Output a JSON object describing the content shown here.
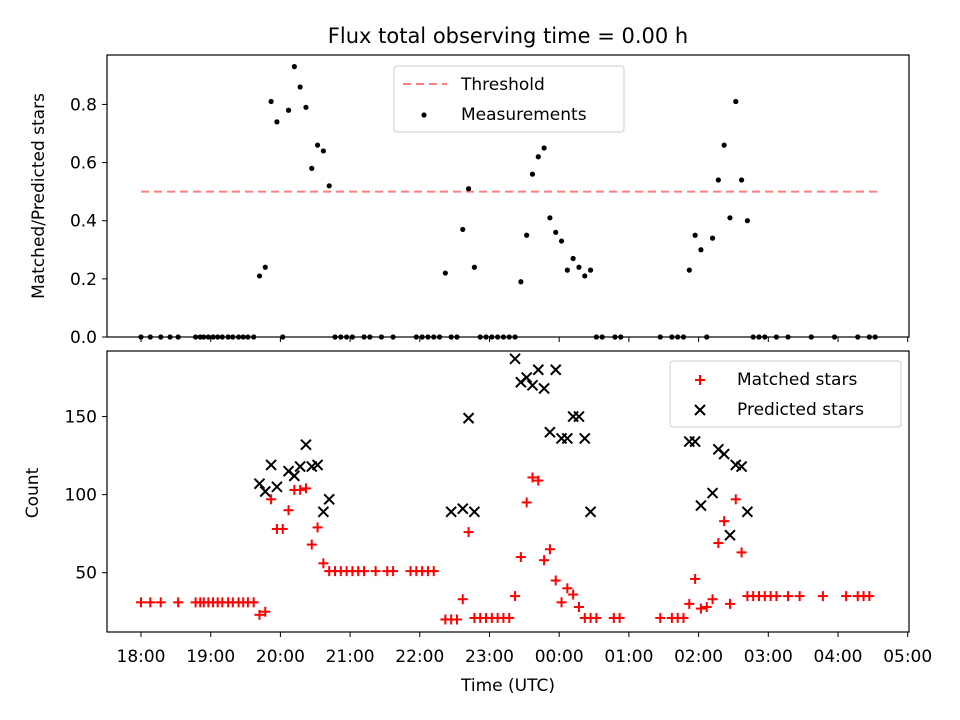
{
  "title": "Flux total observing time = 0.00 h",
  "chart_data": [
    {
      "type": "scatter",
      "title": "Flux total observing time = 0.00 h",
      "xlabel": "",
      "ylabel": "Matched/Predicted stars",
      "ylim": [
        0,
        0.97
      ],
      "yticks": [
        "0.0",
        "0.2",
        "0.4",
        "0.6",
        "0.8"
      ],
      "ytick_values": [
        0,
        0.2,
        0.4,
        0.6,
        0.8
      ],
      "legend_position": "upper center",
      "threshold": {
        "name": "Threshold",
        "value": 0.5,
        "x_range": [
          "18:00",
          "04:36"
        ],
        "color": "#ff7f7f"
      },
      "series": [
        {
          "name": "Measurements",
          "color": "#000000",
          "points": [
            [
              "18:00",
              0
            ],
            [
              "18:08",
              0
            ],
            [
              "18:17",
              0
            ],
            [
              "18:25",
              0
            ],
            [
              "18:32",
              0
            ],
            [
              "18:47",
              0
            ],
            [
              "18:51",
              0
            ],
            [
              "18:54",
              0
            ],
            [
              "18:58",
              0
            ],
            [
              "19:02",
              0
            ],
            [
              "19:06",
              0
            ],
            [
              "19:10",
              0
            ],
            [
              "19:15",
              0
            ],
            [
              "19:19",
              0
            ],
            [
              "19:24",
              0
            ],
            [
              "19:28",
              0
            ],
            [
              "19:32",
              0
            ],
            [
              "19:37",
              0
            ],
            [
              "19:42",
              0.21
            ],
            [
              "19:47",
              0.24
            ],
            [
              "19:52",
              0.81
            ],
            [
              "19:57",
              0.74
            ],
            [
              "20:02",
              0
            ],
            [
              "20:07",
              0.78
            ],
            [
              "20:12",
              0.93
            ],
            [
              "20:17",
              0.86
            ],
            [
              "20:22",
              0.79
            ],
            [
              "20:27",
              0.58
            ],
            [
              "20:32",
              0.66
            ],
            [
              "20:37",
              0.64
            ],
            [
              "20:42",
              0.52
            ],
            [
              "20:47",
              0
            ],
            [
              "20:52",
              0
            ],
            [
              "20:57",
              0
            ],
            [
              "21:02",
              0
            ],
            [
              "21:12",
              0
            ],
            [
              "21:17",
              0
            ],
            [
              "21:27",
              0
            ],
            [
              "21:37",
              0
            ],
            [
              "21:57",
              0
            ],
            [
              "22:02",
              0
            ],
            [
              "22:07",
              0
            ],
            [
              "22:12",
              0
            ],
            [
              "22:17",
              0
            ],
            [
              "22:22",
              0.22
            ],
            [
              "22:27",
              0
            ],
            [
              "22:32",
              0
            ],
            [
              "22:37",
              0.37
            ],
            [
              "22:42",
              0.51
            ],
            [
              "22:47",
              0.24
            ],
            [
              "22:52",
              0
            ],
            [
              "22:57",
              0
            ],
            [
              "23:02",
              0
            ],
            [
              "23:07",
              0
            ],
            [
              "23:12",
              0
            ],
            [
              "23:17",
              0
            ],
            [
              "23:22",
              0
            ],
            [
              "23:27",
              0.19
            ],
            [
              "23:32",
              0.35
            ],
            [
              "23:37",
              0.56
            ],
            [
              "23:42",
              0.62
            ],
            [
              "23:47",
              0.65
            ],
            [
              "23:52",
              0.41
            ],
            [
              "23:57",
              0.36
            ],
            [
              "00:02",
              0.33
            ],
            [
              "00:07",
              0.23
            ],
            [
              "00:12",
              0.27
            ],
            [
              "00:17",
              0.24
            ],
            [
              "00:22",
              0.21
            ],
            [
              "00:27",
              0.23
            ],
            [
              "00:32",
              0
            ],
            [
              "00:37",
              0
            ],
            [
              "00:48",
              0
            ],
            [
              "00:53",
              0
            ],
            [
              "01:27",
              0
            ],
            [
              "01:37",
              0
            ],
            [
              "01:42",
              0
            ],
            [
              "01:47",
              0
            ],
            [
              "01:52",
              0.23
            ],
            [
              "01:57",
              0.35
            ],
            [
              "02:02",
              0.3
            ],
            [
              "02:07",
              0
            ],
            [
              "02:12",
              0.34
            ],
            [
              "02:17",
              0.54
            ],
            [
              "02:22",
              0.66
            ],
            [
              "02:27",
              0.41
            ],
            [
              "02:32",
              0.81
            ],
            [
              "02:37",
              0.54
            ],
            [
              "02:42",
              0.4
            ],
            [
              "02:47",
              0
            ],
            [
              "02:52",
              0
            ],
            [
              "02:57",
              0
            ],
            [
              "03:07",
              0
            ],
            [
              "03:17",
              0
            ],
            [
              "03:37",
              0
            ],
            [
              "03:57",
              0
            ],
            [
              "04:17",
              0
            ],
            [
              "04:27",
              0
            ],
            [
              "04:32",
              0
            ]
          ]
        }
      ]
    },
    {
      "type": "scatter",
      "title": "",
      "xlabel": "Time (UTC)",
      "ylabel": "Count",
      "ylim": [
        12,
        192
      ],
      "yticks": [
        "50",
        "100",
        "150"
      ],
      "ytick_values": [
        50,
        100,
        150
      ],
      "xticks": [
        "18:00",
        "19:00",
        "20:00",
        "21:00",
        "22:00",
        "23:00",
        "00:00",
        "01:00",
        "02:00",
        "03:00",
        "04:00",
        "05:00"
      ],
      "legend_position": "upper right",
      "series": [
        {
          "name": "Matched stars",
          "marker": "plus",
          "color": "#ff0000",
          "points": [
            [
              "18:00",
              31
            ],
            [
              "18:08",
              31
            ],
            [
              "18:17",
              31
            ],
            [
              "18:32",
              31
            ],
            [
              "18:47",
              31
            ],
            [
              "18:51",
              31
            ],
            [
              "18:54",
              31
            ],
            [
              "18:58",
              31
            ],
            [
              "19:02",
              31
            ],
            [
              "19:06",
              31
            ],
            [
              "19:10",
              31
            ],
            [
              "19:15",
              31
            ],
            [
              "19:19",
              31
            ],
            [
              "19:24",
              31
            ],
            [
              "19:28",
              31
            ],
            [
              "19:32",
              31
            ],
            [
              "19:37",
              31
            ],
            [
              "19:42",
              23
            ],
            [
              "19:47",
              25
            ],
            [
              "19:52",
              97
            ],
            [
              "19:57",
              78
            ],
            [
              "20:02",
              78
            ],
            [
              "20:07",
              90
            ],
            [
              "20:12",
              103
            ],
            [
              "20:17",
              103
            ],
            [
              "20:22",
              104
            ],
            [
              "20:27",
              68
            ],
            [
              "20:32",
              79
            ],
            [
              "20:37",
              56
            ],
            [
              "20:42",
              51
            ],
            [
              "20:47",
              51
            ],
            [
              "20:52",
              51
            ],
            [
              "20:57",
              51
            ],
            [
              "21:02",
              51
            ],
            [
              "21:07",
              51
            ],
            [
              "21:12",
              51
            ],
            [
              "21:22",
              51
            ],
            [
              "21:32",
              51
            ],
            [
              "21:37",
              51
            ],
            [
              "21:52",
              51
            ],
            [
              "21:57",
              51
            ],
            [
              "22:02",
              51
            ],
            [
              "22:07",
              51
            ],
            [
              "22:12",
              51
            ],
            [
              "22:22",
              20
            ],
            [
              "22:27",
              20
            ],
            [
              "22:32",
              20
            ],
            [
              "22:37",
              33
            ],
            [
              "22:42",
              76
            ],
            [
              "22:47",
              21
            ],
            [
              "22:52",
              21
            ],
            [
              "22:57",
              21
            ],
            [
              "23:02",
              21
            ],
            [
              "23:07",
              21
            ],
            [
              "23:12",
              21
            ],
            [
              "23:17",
              21
            ],
            [
              "23:22",
              35
            ],
            [
              "23:27",
              60
            ],
            [
              "23:32",
              95
            ],
            [
              "23:37",
              111
            ],
            [
              "23:42",
              109
            ],
            [
              "23:47",
              58
            ],
            [
              "23:52",
              65
            ],
            [
              "23:57",
              45
            ],
            [
              "00:02",
              31
            ],
            [
              "00:07",
              40
            ],
            [
              "00:12",
              36
            ],
            [
              "00:17",
              28
            ],
            [
              "00:22",
              21
            ],
            [
              "00:27",
              21
            ],
            [
              "00:32",
              21
            ],
            [
              "00:47",
              21
            ],
            [
              "00:52",
              21
            ],
            [
              "01:27",
              21
            ],
            [
              "01:37",
              21
            ],
            [
              "01:42",
              21
            ],
            [
              "01:47",
              21
            ],
            [
              "01:52",
              30
            ],
            [
              "01:57",
              46
            ],
            [
              "02:02",
              27
            ],
            [
              "02:07",
              28
            ],
            [
              "02:12",
              33
            ],
            [
              "02:17",
              69
            ],
            [
              "02:22",
              83
            ],
            [
              "02:27",
              30
            ],
            [
              "02:32",
              97
            ],
            [
              "02:37",
              63
            ],
            [
              "02:42",
              35
            ],
            [
              "02:47",
              35
            ],
            [
              "02:52",
              35
            ],
            [
              "02:57",
              35
            ],
            [
              "03:02",
              35
            ],
            [
              "03:07",
              35
            ],
            [
              "03:17",
              35
            ],
            [
              "03:27",
              35
            ],
            [
              "03:47",
              35
            ],
            [
              "04:07",
              35
            ],
            [
              "04:17",
              35
            ],
            [
              "04:22",
              35
            ],
            [
              "04:27",
              35
            ]
          ]
        },
        {
          "name": "Predicted stars",
          "marker": "x",
          "color": "#000000",
          "points": [
            [
              "19:42",
              107
            ],
            [
              "19:47",
              102
            ],
            [
              "19:52",
              119
            ],
            [
              "19:57",
              105
            ],
            [
              "20:07",
              115
            ],
            [
              "20:12",
              112
            ],
            [
              "20:17",
              118
            ],
            [
              "20:22",
              132
            ],
            [
              "20:27",
              118
            ],
            [
              "20:32",
              119
            ],
            [
              "20:37",
              89
            ],
            [
              "20:42",
              97
            ],
            [
              "22:27",
              89
            ],
            [
              "22:37",
              91
            ],
            [
              "22:42",
              149
            ],
            [
              "22:47",
              89
            ],
            [
              "23:22",
              187
            ],
            [
              "23:27",
              172
            ],
            [
              "23:32",
              175
            ],
            [
              "23:37",
              170
            ],
            [
              "23:42",
              180
            ],
            [
              "23:47",
              168
            ],
            [
              "23:52",
              140
            ],
            [
              "23:57",
              180
            ],
            [
              "00:02",
              136
            ],
            [
              "00:07",
              136
            ],
            [
              "00:12",
              150
            ],
            [
              "00:17",
              150
            ],
            [
              "00:22",
              136
            ],
            [
              "00:27",
              89
            ],
            [
              "01:52",
              134
            ],
            [
              "01:57",
              134
            ],
            [
              "02:02",
              93
            ],
            [
              "02:12",
              101
            ],
            [
              "02:17",
              129
            ],
            [
              "02:22",
              126
            ],
            [
              "02:27",
              74
            ],
            [
              "02:32",
              119
            ],
            [
              "02:37",
              118
            ],
            [
              "02:42",
              89
            ]
          ]
        }
      ]
    }
  ]
}
